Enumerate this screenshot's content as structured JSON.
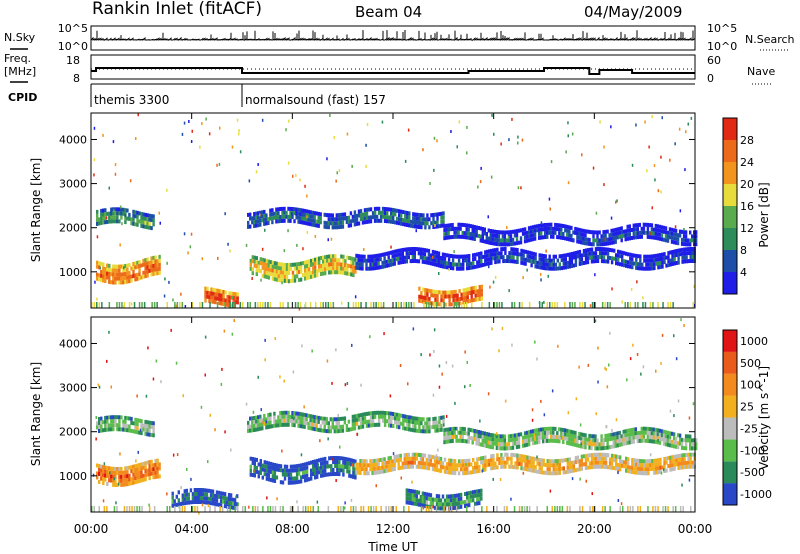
{
  "header": {
    "station": "Rankin Inlet (fitACF)",
    "beam": "Beam 04",
    "date": "04/May/2009"
  },
  "side_labels": {
    "nsky": "N.Sky",
    "freq": "Freq.",
    "mhz": "[MHz]",
    "cpid": "CPID",
    "nsearch": "N.Search",
    "nave": "Nave"
  },
  "noise_panel": {
    "left_ticks": [
      "10^5",
      "10^0"
    ],
    "right_ticks": [
      "10^5",
      "10^0"
    ]
  },
  "freq_panel": {
    "left_ticks": [
      "18",
      "8"
    ],
    "right_ticks": [
      "60",
      "0"
    ]
  },
  "cpid": [
    {
      "label": "themis 3300",
      "start_hour": 0
    },
    {
      "label": "normalsound (fast) 157",
      "start_hour": 6
    }
  ],
  "axes": {
    "ylabel": "Slant Range [km]",
    "xlabel": "Time UT",
    "xticks": [
      "00:00",
      "04:00",
      "08:00",
      "12:00",
      "16:00",
      "20:00",
      "00:00"
    ],
    "yticks": [
      "1000",
      "2000",
      "3000",
      "4000"
    ],
    "xlim": [
      0,
      24
    ],
    "ylim": [
      180,
      4600
    ]
  },
  "chart_data": [
    {
      "type": "heatmap",
      "parameter": "Power",
      "colorbar_label": "Power [dB]",
      "colorbar_ticks": [
        "4",
        "8",
        "12",
        "16",
        "20",
        "24",
        "28"
      ],
      "colors": [
        "#1e1ee8",
        "#1d4fa8",
        "#2e8c5a",
        "#5aaa4e",
        "#e8dc3c",
        "#f2941e",
        "#ec6a1a",
        "#e02a14"
      ],
      "bands": [
        {
          "start_hour": 0.2,
          "end_hour": 2.5,
          "center_km": 2200,
          "width_km": 350,
          "level": 3
        },
        {
          "start_hour": 6.2,
          "end_hour": 14.0,
          "center_km": 2250,
          "width_km": 300,
          "level": 2
        },
        {
          "start_hour": 14.0,
          "end_hour": 24.0,
          "center_km": 1850,
          "width_km": 350,
          "level": 1
        },
        {
          "start_hour": 0.2,
          "end_hour": 2.7,
          "center_km": 1050,
          "width_km": 450,
          "level": 6
        },
        {
          "start_hour": 6.3,
          "end_hour": 10.5,
          "center_km": 1100,
          "width_km": 400,
          "level": 5
        },
        {
          "start_hour": 10.5,
          "end_hour": 24.0,
          "center_km": 1300,
          "width_km": 350,
          "level": 1
        },
        {
          "start_hour": 13.0,
          "end_hour": 15.5,
          "center_km": 500,
          "width_km": 300,
          "level": 7
        },
        {
          "start_hour": 4.5,
          "end_hour": 5.8,
          "center_km": 450,
          "width_km": 300,
          "level": 7
        }
      ]
    },
    {
      "type": "heatmap",
      "parameter": "Velocity",
      "colorbar_label": "Velocity [m s^-1]",
      "colorbar_ticks": [
        "1000",
        "500",
        "100",
        "25",
        "-25",
        "-100",
        "-500",
        "-1000"
      ],
      "colors": [
        "#2848c8",
        "#2a8a5a",
        "#5abc4a",
        "#bcbcbc",
        "#f2b01e",
        "#f28a1e",
        "#ea5a1a",
        "#e01414"
      ],
      "bands": [
        {
          "start_hour": 0.2,
          "end_hour": 2.5,
          "center_km": 2150,
          "width_km": 300,
          "level": 3
        },
        {
          "start_hour": 6.2,
          "end_hour": 14.0,
          "center_km": 2250,
          "width_km": 300,
          "level": 3
        },
        {
          "start_hour": 14.0,
          "end_hour": 24.0,
          "center_km": 1850,
          "width_km": 350,
          "level": 3
        },
        {
          "start_hour": 0.2,
          "end_hour": 2.7,
          "center_km": 1100,
          "width_km": 400,
          "level": 6
        },
        {
          "start_hour": 6.3,
          "end_hour": 10.5,
          "center_km": 1150,
          "width_km": 400,
          "level": 1
        },
        {
          "start_hour": 10.5,
          "end_hour": 24.0,
          "center_km": 1300,
          "width_km": 300,
          "level": 5
        },
        {
          "start_hour": 12.5,
          "end_hour": 15.5,
          "center_km": 500,
          "width_km": 300,
          "level": 2
        },
        {
          "start_hour": 3.2,
          "end_hour": 5.8,
          "center_km": 500,
          "width_km": 300,
          "level": 1
        }
      ]
    }
  ]
}
